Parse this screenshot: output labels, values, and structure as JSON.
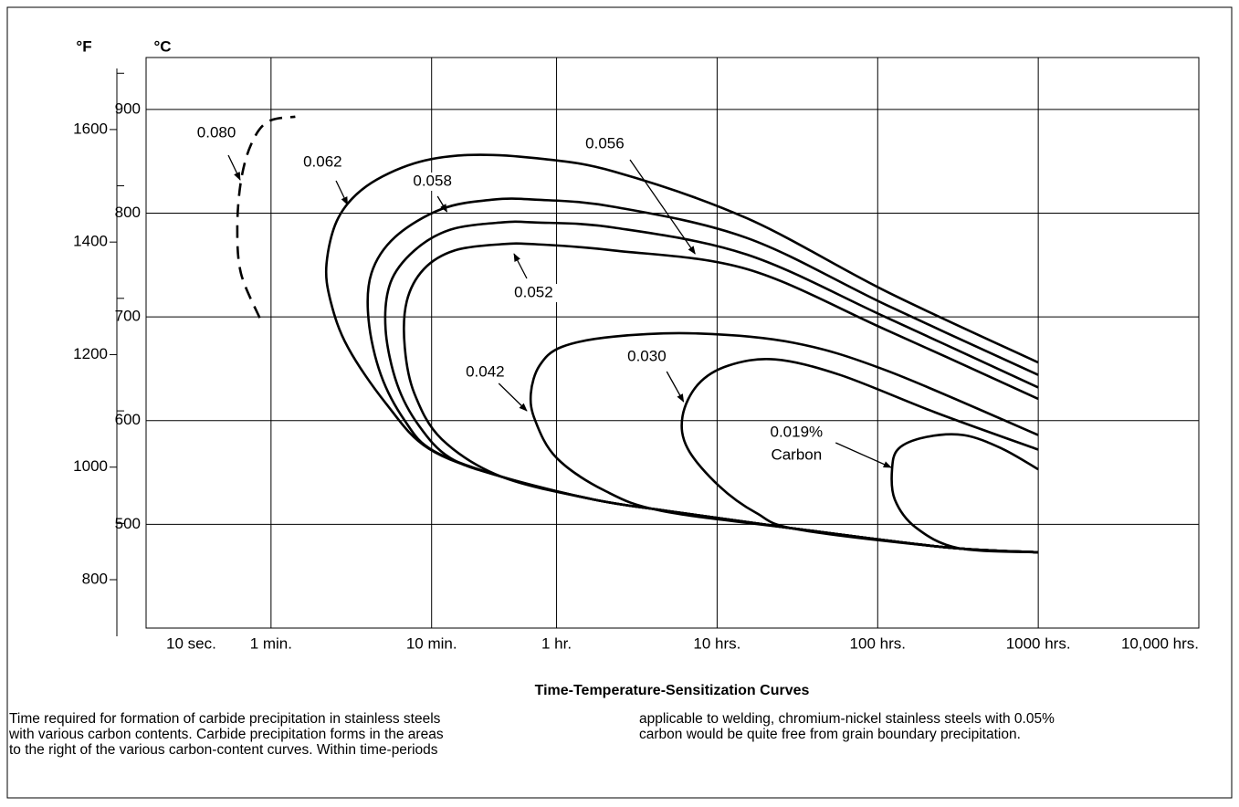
{
  "chart_data": {
    "type": "line",
    "title": "Time-Temperature-Sensitization Curves",
    "ylabel": "°C",
    "y2label": "°F",
    "xlog": true,
    "xlim": [
      10,
      36000000
    ],
    "xticks": [
      {
        "value": 10,
        "label": "10 sec."
      },
      {
        "value": 60,
        "label": "1 min."
      },
      {
        "value": 600,
        "label": "10 min."
      },
      {
        "value": 3600,
        "label": "1 hr."
      },
      {
        "value": 36000,
        "label": "10 hrs."
      },
      {
        "value": 360000,
        "label": "100 hrs."
      },
      {
        "value": 3600000,
        "label": "1000 hrs."
      },
      {
        "value": 36000000,
        "label": "10,000 hrs."
      }
    ],
    "ylim": [
      400,
      950
    ],
    "yticks": [
      500,
      600,
      700,
      800,
      900
    ],
    "y2lim": [
      714,
      1728
    ],
    "y2ticks": [
      800,
      1000,
      1200,
      1400,
      1600
    ],
    "y2minor_ticks": [
      900,
      1100,
      1300,
      1500,
      1700
    ],
    "grid": true,
    "series": [
      {
        "name": "0.080",
        "color": "#000000",
        "dashed": true,
        "x": [
          51,
          39,
          37,
          39,
          45,
          57,
          85
        ],
        "values": [
          699,
          742,
          786,
          831,
          866,
          888,
          893
        ]
      },
      {
        "name": "0.062",
        "color": "#000000",
        "x": [
          3600000,
          413000,
          55200,
          8230,
          2650,
          1000,
          469,
          236,
          157,
          133,
          141,
          180,
          310,
          575,
          1630,
          6100,
          17500,
          108000,
          940000,
          3600000
        ],
        "values": [
          656,
          724,
          795,
          840,
          853,
          856,
          848,
          826,
          795,
          751,
          715,
          671,
          617,
          573,
          546,
          524,
          513,
          496,
          478,
          473
        ]
      },
      {
        "name": "0.058",
        "color": "#000000",
        "x": [
          3600000,
          413000,
          55200,
          8230,
          2650,
          1440,
          695,
          356,
          253,
          243,
          290,
          408,
          615,
          1630,
          6100,
          17500,
          108000,
          940000,
          3600000
        ],
        "values": [
          644,
          711,
          776,
          806,
          813,
          813,
          804,
          777,
          742,
          697,
          644,
          600,
          571,
          546,
          524,
          513,
          496,
          478,
          473
        ]
      },
      {
        "name": "0.056",
        "color": "#000000",
        "x": [
          3600000,
          413000,
          55200,
          8230,
          2650,
          1630,
          784,
          469,
          333,
          310,
          366,
          501,
          784,
          1630,
          6100,
          17500,
          108000,
          940000,
          3600000
        ],
        "values": [
          632,
          699,
          760,
          786,
          791,
          791,
          784,
          764,
          733,
          688,
          635,
          595,
          564,
          546,
          524,
          513,
          496,
          478,
          473
        ]
      },
      {
        "name": "0.052",
        "color": "#000000",
        "x": [
          3600000,
          413000,
          55200,
          8230,
          2650,
          1630,
          834,
          537,
          420,
          408,
          469,
          695,
          1630,
          6100,
          17500,
          108000,
          940000,
          3600000
        ],
        "values": [
          621,
          687,
          746,
          764,
          770,
          770,
          764,
          746,
          715,
          671,
          626,
          582,
          546,
          524,
          513,
          496,
          478,
          473
        ]
      },
      {
        "name": "0.042",
        "color": "#000000",
        "x": [
          3600000,
          413000,
          108000,
          27400,
          8230,
          3880,
          2820,
          2490,
          2650,
          3600,
          7080,
          16200,
          108000,
          940000,
          3600000
        ],
        "values": [
          586,
          648,
          675,
          684,
          681,
          671,
          653,
          626,
          600,
          564,
          533,
          513,
          496,
          478,
          473
        ]
      },
      {
        "name": "0.030",
        "color": "#000000",
        "x": [
          3600000,
          818000,
          210000,
          82400,
          42300,
          27400,
          21900,
          23600,
          37000,
          63100,
          115000,
          940000,
          3600000
        ],
        "values": [
          572,
          608,
          644,
          659,
          653,
          635,
          604,
          573,
          537,
          511,
          495,
          478,
          473
        ]
      },
      {
        "name": "0.019%",
        "color": "#000000",
        "unit_label": "Carbon",
        "x": [
          3600000,
          2140000,
          1240000,
          714000,
          486000,
          442000,
          460000,
          622000,
          1150000,
          3600000
        ],
        "values": [
          553,
          573,
          586,
          584,
          573,
          553,
          524,
          497,
          477,
          473
        ]
      }
    ]
  },
  "caption": {
    "left": [
      "Time required for formation of carbide precipitation in stainless steels",
      "with various carbon contents. Carbide precipitation forms in the areas",
      "to the right of the various carbon-content curves. Within time-periods"
    ],
    "right": [
      "applicable to welding, chromium-nickel stainless steels with 0.05%",
      "carbon would be quite free from grain boundary precipitation."
    ]
  }
}
